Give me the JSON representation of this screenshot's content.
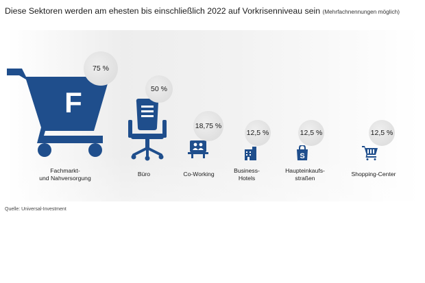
{
  "title": {
    "main": "Diese Sektoren werden am ehesten bis einschließlich 2022 auf Vorkrisenniveau sein",
    "note": "(Mehrfachnennungen möglich)"
  },
  "source": "Quelle: Universal-Investment",
  "colors": {
    "icon_blue": "#1f4e8c",
    "badge_gray": "#dcdcdc"
  },
  "chart_data": {
    "type": "bar",
    "unit": "%",
    "categories": [
      {
        "label": "Fachmarkt-\nund Nahversorgung",
        "value": 75,
        "value_label": "75 %",
        "icon": "shopping-cart-f-icon"
      },
      {
        "label": "Büro",
        "value": 50,
        "value_label": "50 %",
        "icon": "office-chair-icon"
      },
      {
        "label": "Co-Working",
        "value": 18.75,
        "value_label": "18,75 %",
        "icon": "coworking-people-icon"
      },
      {
        "label": "Business-\nHotels",
        "value": 12.5,
        "value_label": "12,5 %",
        "icon": "hotel-building-icon"
      },
      {
        "label": "Haupteinkaufs-\nstraßen",
        "value": 12.5,
        "value_label": "12,5 %",
        "icon": "shopping-bag-icon"
      },
      {
        "label": "Shopping-Center",
        "value": 12.5,
        "value_label": "12,5 %",
        "icon": "shopping-cart-icon"
      }
    ]
  }
}
